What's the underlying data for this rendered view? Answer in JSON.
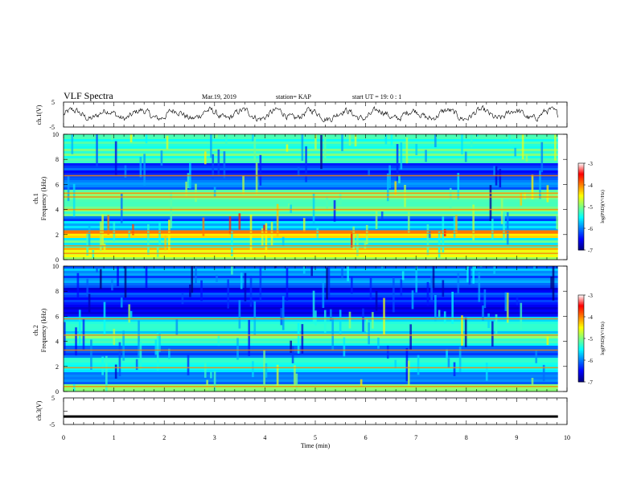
{
  "header": {
    "title": "VLF Spectra",
    "date": "Mar.19, 2019",
    "station": "station= KAP",
    "start": "start  UT =   19: 0  : 1"
  },
  "chart_data": [
    {
      "type": "line",
      "panel": "ch1-waveform",
      "ylabel": "ch.1(V)",
      "ylim": [
        -5,
        5
      ],
      "yticks": [
        5,
        -5
      ],
      "xlim": [
        0,
        10
      ],
      "x_end": 9.82,
      "signal": "noisy waveform roughly between -3 and 3 V"
    },
    {
      "type": "heatmap",
      "panel": "ch1-spectrogram",
      "ylabel_top": "ch.1",
      "ylabel": "Frequency (kHz)",
      "ylim": [
        0,
        10
      ],
      "yticks": [
        0,
        2,
        4,
        6,
        8,
        10
      ],
      "xlim": [
        0,
        10
      ],
      "x_end": 9.82,
      "bands": [
        {
          "f0": 0.0,
          "f1": 0.6,
          "level": -4.7
        },
        {
          "f0": 0.6,
          "f1": 1.0,
          "level": -4.3
        },
        {
          "f0": 1.0,
          "f1": 1.8,
          "level": -5.3
        },
        {
          "f0": 1.8,
          "f1": 2.4,
          "level": -4.2
        },
        {
          "f0": 2.4,
          "f1": 3.0,
          "level": -5.6
        },
        {
          "f0": 3.0,
          "f1": 3.4,
          "level": -6.3
        },
        {
          "f0": 3.4,
          "f1": 4.8,
          "level": -5.1
        },
        {
          "f0": 4.8,
          "f1": 5.6,
          "level": -5.0
        },
        {
          "f0": 5.6,
          "f1": 6.5,
          "level": -6.0
        },
        {
          "f0": 6.5,
          "f1": 7.6,
          "level": -6.2
        },
        {
          "f0": 7.6,
          "f1": 10.0,
          "level": -5.2
        }
      ],
      "lines_khz": [
        0.5,
        1.1,
        2.1,
        2.3,
        4.0,
        5.0,
        5.3,
        6.7
      ]
    },
    {
      "type": "heatmap",
      "panel": "ch2-spectrogram",
      "ylabel_top": "ch.2",
      "ylabel": "Frequency (kHz)",
      "ylim": [
        0,
        10
      ],
      "yticks": [
        0,
        2,
        4,
        6,
        8,
        10
      ],
      "xlim": [
        0,
        10
      ],
      "x_end": 9.82,
      "bands": [
        {
          "f0": 0.0,
          "f1": 0.5,
          "level": -5.0
        },
        {
          "f0": 0.5,
          "f1": 1.5,
          "level": -6.0
        },
        {
          "f0": 1.5,
          "f1": 2.6,
          "level": -5.6
        },
        {
          "f0": 2.6,
          "f1": 3.6,
          "level": -6.2
        },
        {
          "f0": 3.6,
          "f1": 4.6,
          "level": -5.2
        },
        {
          "f0": 4.6,
          "f1": 6.0,
          "level": -5.5
        },
        {
          "f0": 6.0,
          "f1": 8.4,
          "level": -6.4
        },
        {
          "f0": 8.4,
          "f1": 10.0,
          "level": -6.0
        }
      ],
      "lines_khz": [
        0.4,
        1.9,
        3.3,
        4.5,
        5.8
      ]
    },
    {
      "type": "line",
      "panel": "ch3-waveform",
      "ylabel": "ch.3(V)",
      "ylim": [
        -5,
        5
      ],
      "yticks": [
        5,
        0,
        -5
      ],
      "xlim": [
        0,
        10
      ],
      "x_end": 9.82,
      "constant_value": -2,
      "xlabel": "Time  (min)",
      "xticks": [
        0,
        1,
        2,
        3,
        4,
        5,
        6,
        7,
        8,
        9,
        10
      ]
    },
    {
      "type": "colorbar",
      "label": "log(PSD)(V²/Hz)",
      "range": [
        -7,
        -3
      ],
      "ticks": [
        -3,
        -4,
        -5,
        -6,
        -7
      ],
      "colormap": [
        "#00007f",
        "#0000ff",
        "#0080ff",
        "#00ffff",
        "#80ff80",
        "#ffff00",
        "#ff8000",
        "#ff0000",
        "#ffffff"
      ]
    }
  ]
}
